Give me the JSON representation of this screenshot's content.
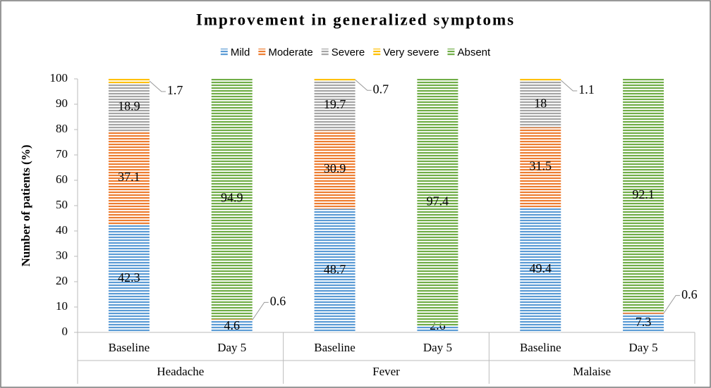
{
  "chart_data": {
    "type": "stacked-bar",
    "title": "Improvement in generalized symptoms",
    "y_label": "Number of patients (%)",
    "categories": [
      "Baseline",
      "Day 5",
      "Baseline",
      "Day 5",
      "Baseline",
      "Day 5"
    ],
    "groups": [
      "Headache",
      "Fever",
      "Malaise"
    ],
    "series": [
      {
        "name": "Mild",
        "color": "#5b9bd5",
        "values": [
          42.3,
          4.6,
          48.7,
          2.6,
          49.4,
          7.3
        ]
      },
      {
        "name": "Moderate",
        "color": "#ed7d31",
        "values": [
          37.1,
          0.6,
          30.9,
          null,
          31.5,
          0.6
        ]
      },
      {
        "name": "Severe",
        "color": "#a5a5a5",
        "values": [
          18.9,
          null,
          19.7,
          null,
          18,
          null
        ]
      },
      {
        "name": "Very severe",
        "color": "#ffc000",
        "values": [
          1.7,
          null,
          0.7,
          null,
          1.1,
          null
        ]
      },
      {
        "name": "Absent",
        "color": "#70ad47",
        "values": [
          null,
          94.9,
          null,
          97.4,
          null,
          92.1
        ]
      }
    ],
    "ylim": [
      0,
      100
    ],
    "yticks": [
      0,
      10,
      20,
      30,
      40,
      50,
      60,
      70,
      80,
      90,
      100
    ],
    "legend": "top"
  }
}
